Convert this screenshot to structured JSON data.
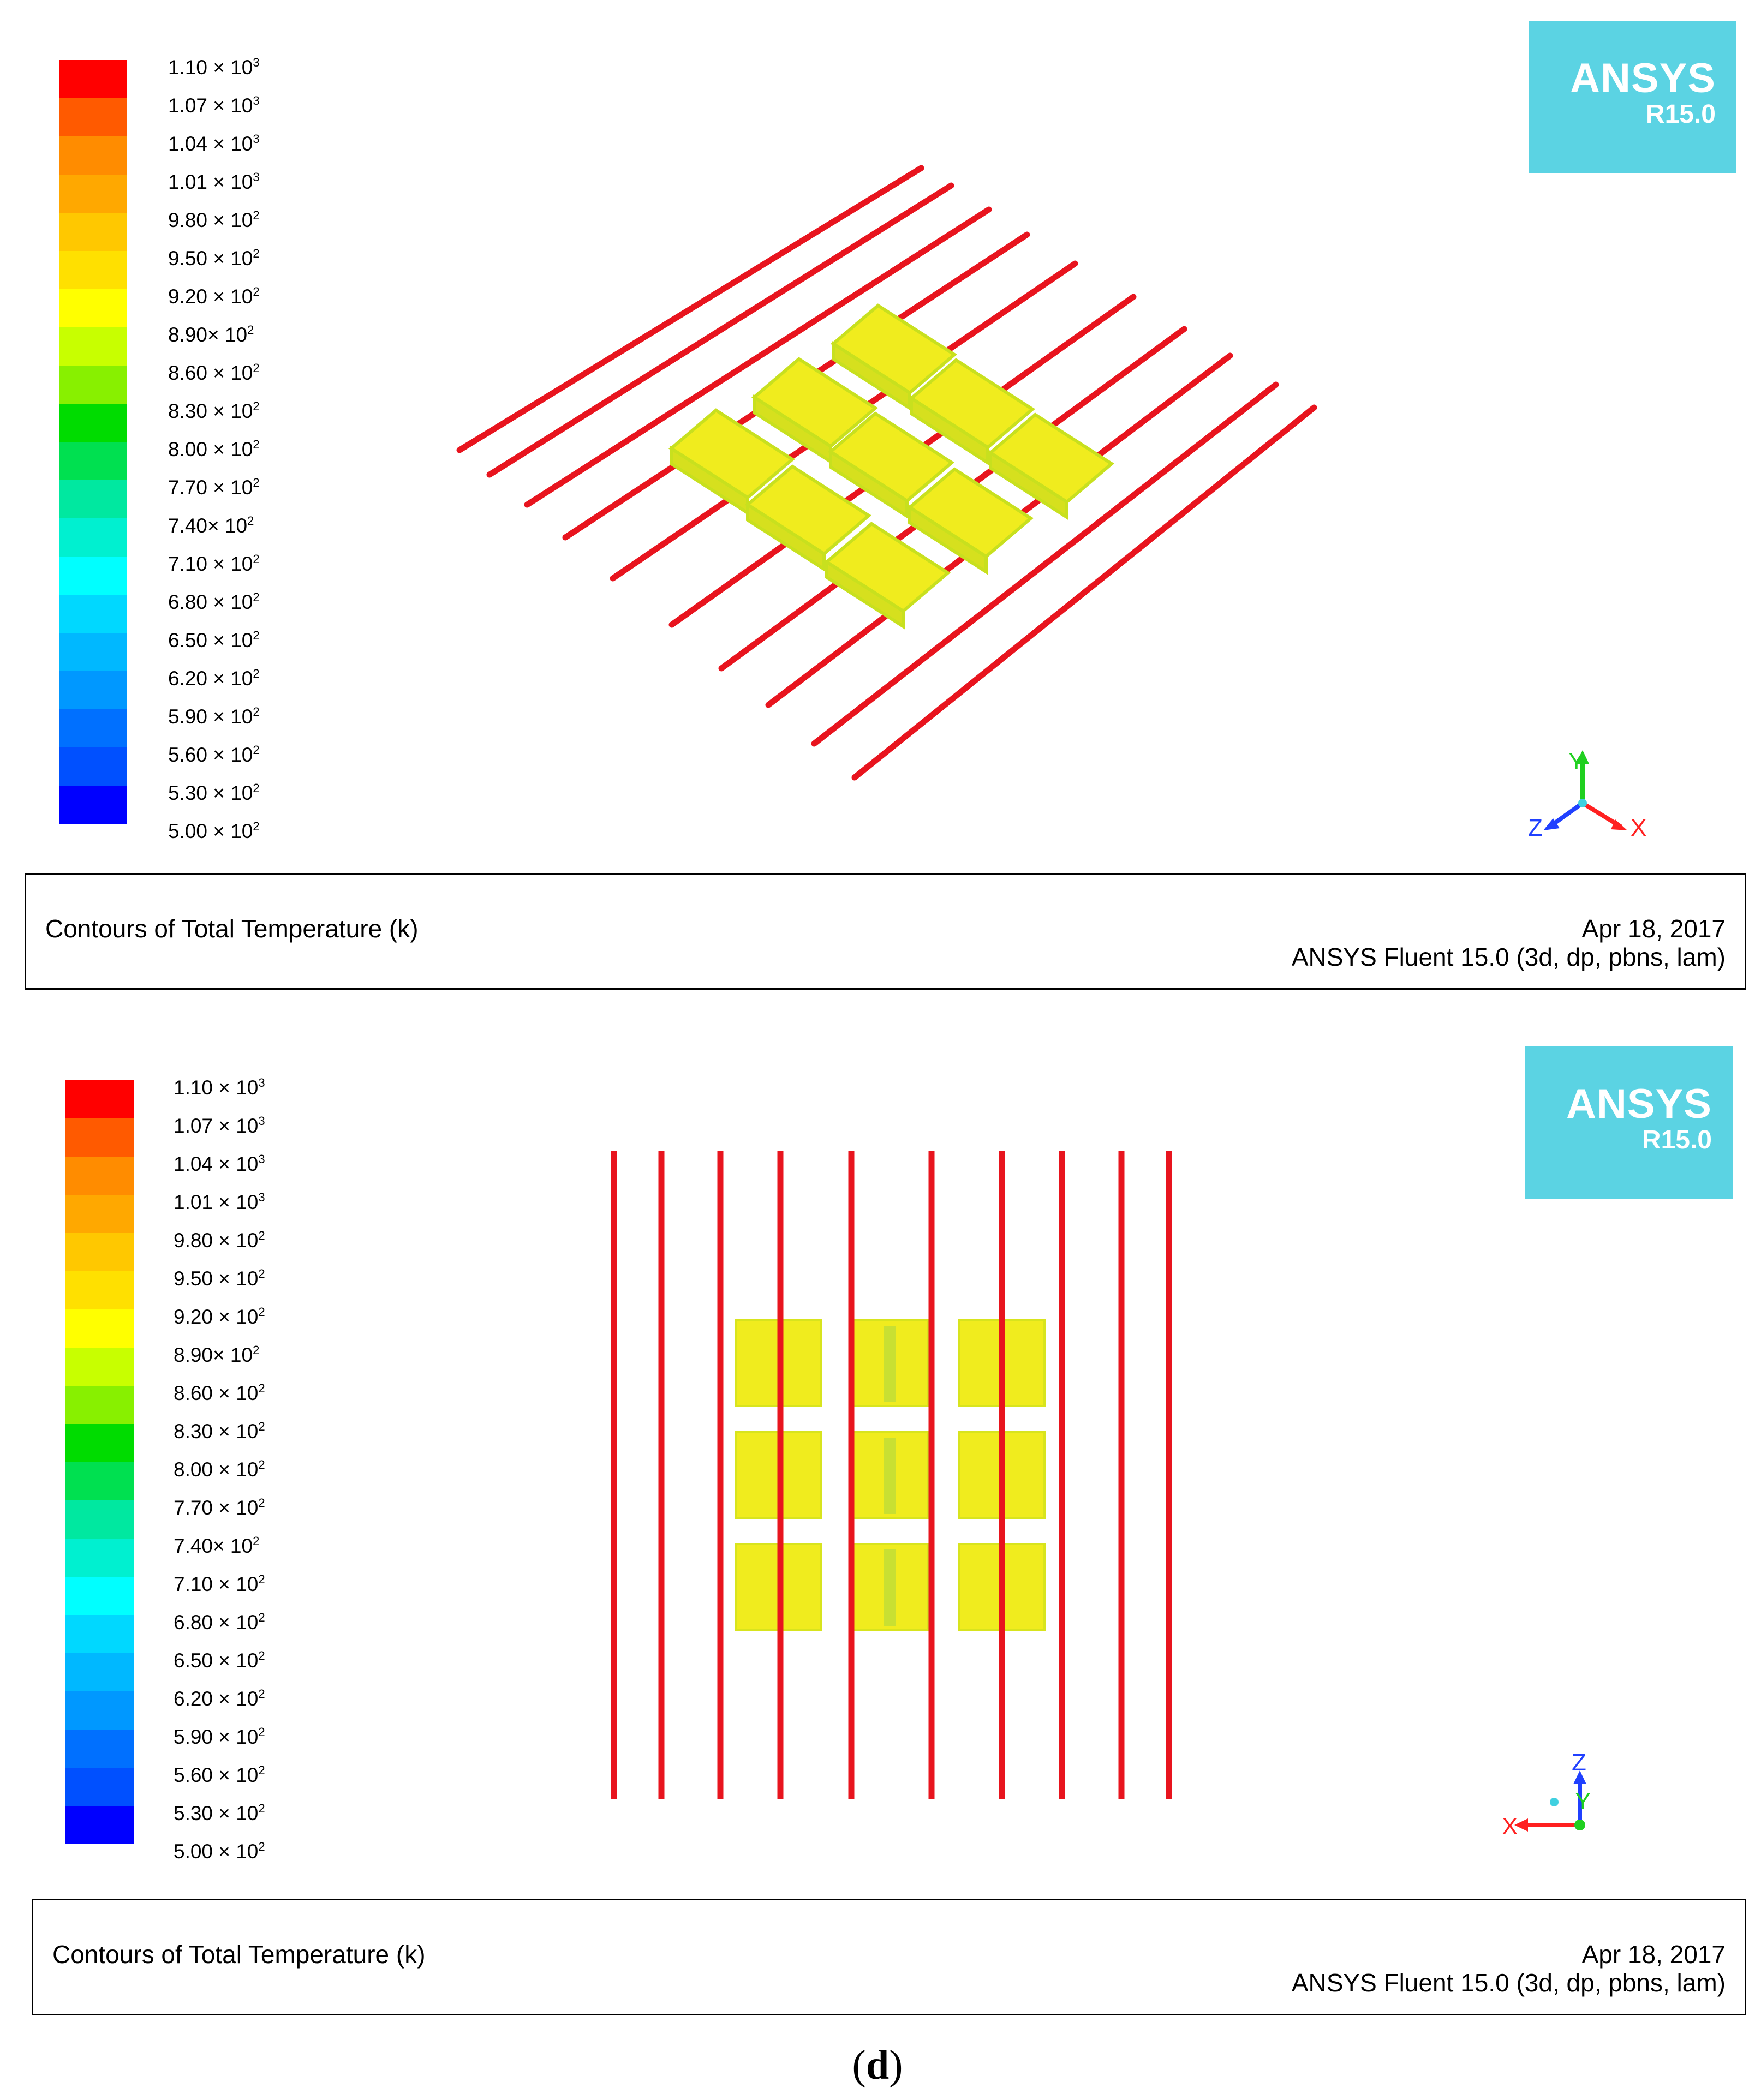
{
  "colorbar": {
    "colors": [
      "#ff0000",
      "#ff5a00",
      "#ff8c00",
      "#ffa800",
      "#ffc800",
      "#ffe000",
      "#ffff00",
      "#c8ff00",
      "#88f000",
      "#00dc00",
      "#00e050",
      "#00e8a0",
      "#00f0d0",
      "#00ffff",
      "#00d8ff",
      "#00b8ff",
      "#0098ff",
      "#0070ff",
      "#0050ff",
      "#0000ff"
    ],
    "labels": [
      {
        "mantissa": "1.10 ×",
        "base": "10",
        "exp": "3"
      },
      {
        "mantissa": "1.07 ×",
        "base": "10",
        "exp": "3"
      },
      {
        "mantissa": "1.04 ×",
        "base": "10",
        "exp": "3"
      },
      {
        "mantissa": "1.01 ×",
        "base": "10",
        "exp": "3"
      },
      {
        "mantissa": "9.80 ×",
        "base": "10",
        "exp": "2"
      },
      {
        "mantissa": "9.50 ×",
        "base": "10",
        "exp": "2"
      },
      {
        "mantissa": "9.20 ×",
        "base": "10",
        "exp": "2"
      },
      {
        "mantissa": "8.90×",
        "base": "10",
        "exp": "2"
      },
      {
        "mantissa": "8.60 ×",
        "base": "10",
        "exp": "2"
      },
      {
        "mantissa": "8.30 ×",
        "base": "10",
        "exp": "2"
      },
      {
        "mantissa": "8.00 ×",
        "base": "10",
        "exp": "2"
      },
      {
        "mantissa": "7.70 ×",
        "base": "10",
        "exp": "2"
      },
      {
        "mantissa": "7.40×",
        "base": "10",
        "exp": "2"
      },
      {
        "mantissa": "7.10 ×",
        "base": "10",
        "exp": "2"
      },
      {
        "mantissa": "6.80 ×",
        "base": "10",
        "exp": "2"
      },
      {
        "mantissa": "6.50 ×",
        "base": "10",
        "exp": "2"
      },
      {
        "mantissa": "6.20 ×",
        "base": "10",
        "exp": "2"
      },
      {
        "mantissa": "5.90 ×",
        "base": "10",
        "exp": "2"
      },
      {
        "mantissa": "5.60 ×",
        "base": "10",
        "exp": "2"
      },
      {
        "mantissa": "5.30 ×",
        "base": "10",
        "exp": "2"
      },
      {
        "mantissa": "5.00 ×",
        "base": "10",
        "exp": "2"
      }
    ]
  },
  "logo": {
    "word": "ANSYS",
    "version": "R15.0",
    "color": "#5bd3e3"
  },
  "caption": {
    "title": "Contours of Total Temperature (k)",
    "date": "Apr 18, 2017",
    "version": "ANSYS Fluent 15.0 (3d, dp, pbns, lam)"
  },
  "triad_top": {
    "x": "X",
    "y": "Y",
    "z": "Z"
  },
  "triad_bottom": {
    "x": "X",
    "y": "Y",
    "z": "Z"
  },
  "figure_label": {
    "open": "(",
    "letter": "d",
    "close": ")"
  },
  "colors": {
    "line": "#e8141e",
    "block": "#f0ec1e",
    "block_edge": "#c8e01e",
    "x_axis": "#ff2020",
    "y_axis": "#20d020",
    "z_axis": "#2040ff"
  }
}
